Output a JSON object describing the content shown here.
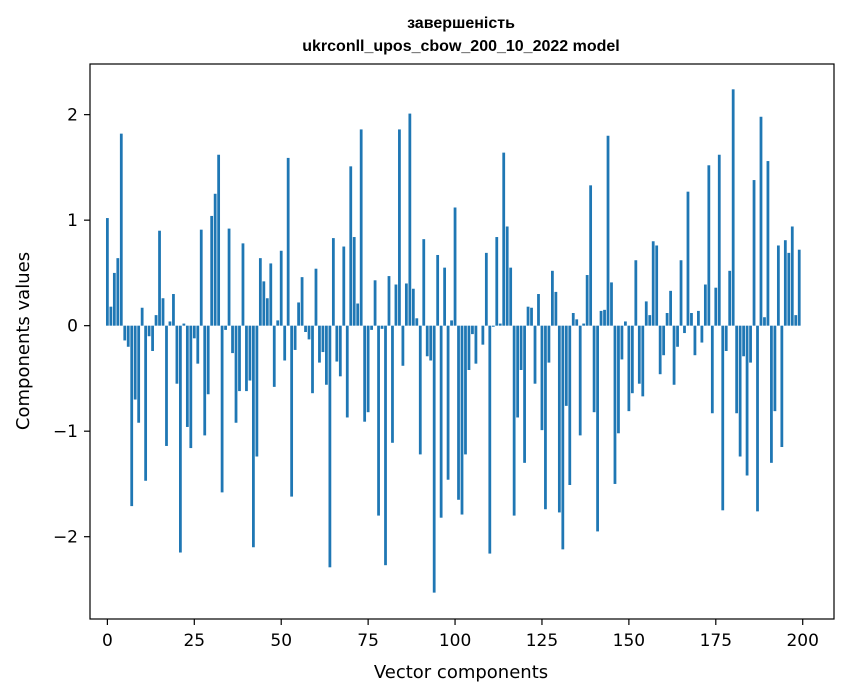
{
  "chart_data": {
    "type": "bar",
    "title_line1": "завершеність",
    "title_line2": "ukrconll_upos_cbow_200_10_2022 model",
    "xlabel": "Vector components",
    "ylabel": "Components values",
    "xlim": [
      -5,
      209
    ],
    "ylim": [
      -2.78,
      2.48
    ],
    "x_ticks": [
      0,
      25,
      50,
      75,
      100,
      125,
      150,
      175,
      200
    ],
    "x_tick_labels": [
      "0",
      "25",
      "50",
      "75",
      "100",
      "125",
      "150",
      "175",
      "200"
    ],
    "y_ticks": [
      2,
      1,
      0,
      -1,
      -2
    ],
    "y_tick_labels": [
      "2",
      "1",
      "0",
      "−1",
      "−2"
    ],
    "bar_color": "#1f77b4",
    "grid": false,
    "legend": "none",
    "values": [
      1.02,
      0.18,
      0.5,
      0.64,
      1.82,
      -0.14,
      -0.2,
      -1.71,
      -0.7,
      -0.92,
      0.17,
      -1.47,
      -0.1,
      -0.24,
      0.1,
      0.9,
      0.26,
      -1.14,
      0.04,
      0.3,
      -0.55,
      -2.15,
      0.02,
      -0.96,
      -1.16,
      -0.12,
      -0.36,
      0.91,
      -1.04,
      -0.65,
      1.04,
      1.25,
      1.62,
      -1.58,
      -0.04,
      0.92,
      -0.26,
      -0.92,
      -0.62,
      0.78,
      -0.62,
      -0.52,
      -2.1,
      -1.24,
      0.64,
      0.42,
      0.26,
      0.59,
      -0.58,
      0.05,
      0.71,
      -0.33,
      1.59,
      -1.62,
      -0.23,
      0.22,
      0.46,
      -0.06,
      -0.13,
      -0.64,
      0.54,
      -0.35,
      -0.25,
      -0.56,
      -2.29,
      0.83,
      -0.34,
      -0.48,
      0.75,
      -0.87,
      1.51,
      0.84,
      0.21,
      1.86,
      -0.91,
      -0.82,
      -0.04,
      0.43,
      -1.8,
      -0.03,
      -2.27,
      0.47,
      -1.11,
      0.39,
      1.86,
      -0.38,
      0.4,
      2.01,
      0.35,
      0.07,
      -1.22,
      0.82,
      -0.29,
      -0.33,
      -2.53,
      0.67,
      -1.82,
      0.55,
      -1.46,
      0.05,
      1.12,
      -1.65,
      -1.79,
      -1.22,
      -0.42,
      -0.08,
      -0.36,
      0.0,
      -0.18,
      0.69,
      -2.16,
      -0.01,
      0.84,
      0.02,
      1.64,
      0.94,
      0.55,
      -1.8,
      -0.87,
      -0.42,
      -1.3,
      0.18,
      0.17,
      -0.55,
      0.3,
      -0.99,
      -1.74,
      -0.35,
      0.52,
      0.32,
      -1.77,
      -2.12,
      -0.76,
      -1.51,
      0.12,
      0.06,
      -1.04,
      0.02,
      0.48,
      1.33,
      -0.82,
      -1.95,
      0.14,
      0.15,
      1.8,
      0.41,
      -1.5,
      -1.02,
      -0.32,
      0.04,
      -0.81,
      -0.64,
      0.62,
      -0.55,
      -0.67,
      0.23,
      0.1,
      0.8,
      0.76,
      -0.46,
      -0.28,
      0.12,
      0.33,
      -0.56,
      -0.2,
      0.62,
      -0.07,
      1.27,
      0.12,
      -0.28,
      0.14,
      -0.16,
      0.39,
      1.52,
      -0.83,
      0.36,
      1.62,
      -1.75,
      -0.24,
      0.52,
      2.24,
      -0.83,
      -1.24,
      -0.29,
      -1.42,
      -0.35,
      1.38,
      -1.76,
      1.98,
      0.08,
      1.56,
      -1.3,
      -0.81,
      0.76,
      -1.15,
      0.81,
      0.69,
      0.94,
      0.1,
      0.72
    ]
  }
}
